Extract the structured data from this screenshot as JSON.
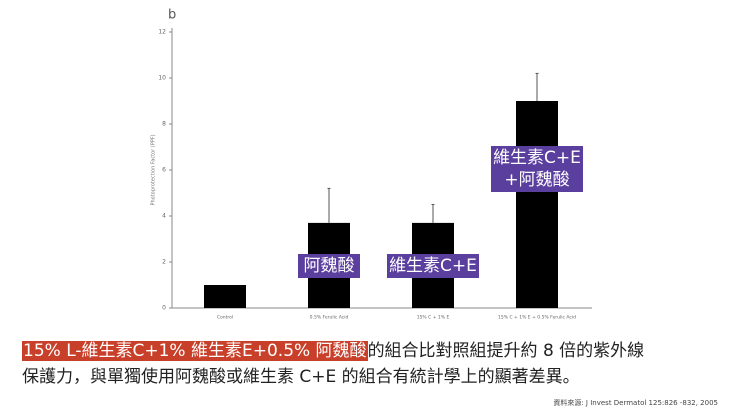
{
  "chart_data": {
    "type": "bar",
    "panel_label": "b",
    "y_label": "Photoprotection Factor (PPF)",
    "categories": [
      "Control",
      "0.5% Ferulic Acid",
      "15% C + 1% E",
      "15% C + 1% E + 0.5% Ferulic Acid"
    ],
    "values": [
      1.0,
      3.7,
      3.7,
      9.0
    ],
    "errors": [
      0,
      1.5,
      0.8,
      1.2
    ],
    "color": "#000000",
    "ylim": [
      0,
      12
    ],
    "yticks": [
      0,
      2,
      4,
      6,
      8,
      10,
      12
    ],
    "annotations": [
      [
        "阿魏酸"
      ],
      [
        "維生素C+E"
      ],
      [
        "維生素C+E",
        "+阿魏酸"
      ]
    ],
    "annotation_color": "#5b3f9e"
  },
  "caption": {
    "highlight": "15% L-維生素C+1% 維生素E+0.5% 阿魏酸",
    "line1_rest": "的組合比對照組提升約 8 倍的紫外線",
    "line2": "保護力，與單獨使用阿魏酸或維生素 C+E 的組合有統計學上的顯著差異。"
  },
  "source": "資料來源: J Invest Dermatol 125:826 -832, 2005"
}
